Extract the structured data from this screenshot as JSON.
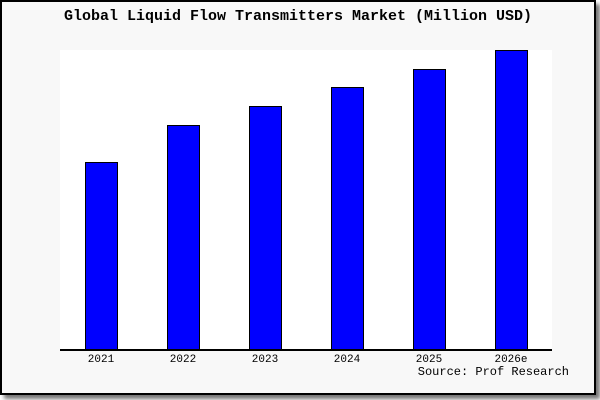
{
  "title": "Global Liquid Flow Transmitters Market (Million USD)",
  "source_label": "Source: Prof Research",
  "colors": {
    "frame_background": "#f8f8f8",
    "plot_background": "#ffffff",
    "bar_fill": "#0000ff",
    "bar_border": "#000000",
    "axis": "#000000",
    "text": "#000000"
  },
  "chart_data": {
    "type": "bar",
    "title": "Global Liquid Flow Transmitters Market (Million USD)",
    "categories": [
      "2021",
      "2022",
      "2023",
      "2024",
      "2025",
      "2026e"
    ],
    "values": [
      100,
      120,
      130,
      140,
      150,
      160
    ],
    "xlabel": "",
    "ylabel": "",
    "ylim": [
      0,
      160
    ],
    "grid": false,
    "legend_visible": false,
    "y_axis_labels_visible": false,
    "bar_color": "#0000ff",
    "source": "Source: Prof Research"
  }
}
